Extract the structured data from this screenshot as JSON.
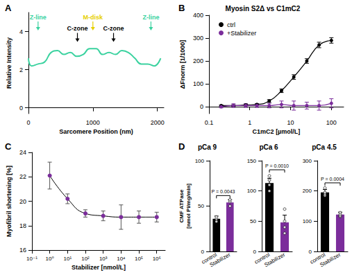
{
  "chart_data": [
    {
      "panel": "A",
      "type": "line",
      "x_label": "Sarcomere Position (nm)",
      "y_label": "Relative Intensity",
      "x": [
        0,
        50,
        150,
        250,
        350,
        450,
        550,
        650,
        750,
        850,
        950,
        1050,
        1150,
        1250,
        1350,
        1450,
        1550,
        1650,
        1750,
        1850,
        1950,
        2050
      ],
      "values": [
        2.6,
        2.2,
        2.3,
        2.4,
        2.9,
        3.0,
        2.8,
        2.9,
        2.7,
        2.8,
        3.1,
        3.1,
        2.8,
        2.9,
        2.8,
        3.0,
        2.9,
        2.6,
        2.3,
        2.3,
        2.2,
        2.6
      ],
      "color": "#3ad29f",
      "xlim": [
        0,
        2100
      ],
      "xticks": [
        0,
        1000,
        2000
      ],
      "ylim": [
        -0.3,
        5
      ],
      "yticks": [
        0,
        2,
        4
      ],
      "grid": false,
      "annotations": [
        {
          "text": "Z-line",
          "x": 150,
          "y": 4.6,
          "color": "#3ad29f"
        },
        {
          "text": "C-zone",
          "x": 760,
          "y": 4.0,
          "color": "#000000"
        },
        {
          "text": "M-disk",
          "x": 1000,
          "y": 4.6,
          "color": "#e6cf00"
        },
        {
          "text": "C-zone",
          "x": 1320,
          "y": 4.0,
          "color": "#000000"
        },
        {
          "text": "Z-line",
          "x": 1900,
          "y": 4.6,
          "color": "#3ad29f"
        }
      ]
    },
    {
      "panel": "B",
      "type": "line",
      "title": "Myosin S2Δ vs C1mC2",
      "x_label": "C1mC2 [µmol/L]",
      "y_label": "ΔFnorm [1/1000]",
      "log": "x",
      "legend": "top-left",
      "grid": false,
      "x": [
        0.2,
        0.4,
        0.8,
        1.5,
        3,
        6,
        12,
        25,
        50,
        100
      ],
      "series": [
        {
          "name": "ctrl",
          "color": "#000000",
          "marker": "circle",
          "line_style": "solid",
          "values": [
            5,
            5,
            8,
            10,
            25,
            70,
            130,
            200,
            270,
            290
          ],
          "errors": [
            3,
            3,
            4,
            4,
            6,
            8,
            10,
            10,
            12,
            12
          ]
        },
        {
          "name": "+Stabilizer",
          "color": "#7b2d9b",
          "marker": "circle",
          "line_style": "solid",
          "values": [
            0,
            5,
            5,
            5,
            5,
            10,
            5,
            5,
            5,
            15
          ],
          "errors": [
            5,
            8,
            8,
            8,
            10,
            15,
            20,
            15,
            20,
            20
          ]
        }
      ],
      "xlim": [
        0.1,
        200
      ],
      "xticks": [
        0.1,
        1,
        10,
        100
      ],
      "ylim": [
        -30,
        400
      ],
      "yticks": [
        0,
        100,
        200,
        300,
        400
      ]
    },
    {
      "panel": "C",
      "type": "line",
      "x_label": "Stabilizer [nmol/L]",
      "y_label": "Myofibril shortening [%]",
      "log": "x",
      "grid": false,
      "color": "#7b2d9b",
      "marker": "circle",
      "x": [
        1,
        10,
        100,
        1000,
        10000,
        100000,
        1000000
      ],
      "values": [
        22.1,
        20.2,
        19.0,
        18.8,
        18.7,
        18.7,
        18.7
      ],
      "errors": [
        1.1,
        0.4,
        0.3,
        0.4,
        1.0,
        0.5,
        0.4
      ],
      "xlim": [
        0.1,
        3000000
      ],
      "xticks": [
        {
          "value": 0.1,
          "label": "10⁻¹"
        },
        {
          "value": 1,
          "label": "10⁰"
        },
        {
          "value": 10,
          "label": "10¹"
        },
        {
          "value": 100,
          "label": "10²"
        },
        {
          "value": 1000,
          "label": "10³"
        },
        {
          "value": 10000,
          "label": "10⁴"
        },
        {
          "value": 100000,
          "label": "10⁵"
        },
        {
          "value": 1000000,
          "label": "10⁶"
        }
      ],
      "ylim": [
        16,
        24
      ],
      "yticks": [
        16,
        18,
        20,
        22,
        24
      ]
    },
    {
      "panel": "D",
      "type": "bar",
      "title": "pCa 9",
      "y_label": "CMF ATPase\n[nmol Pi/mg/min]",
      "grid": false,
      "categories": [
        "control",
        "Stabilizer"
      ],
      "values": [
        36,
        54
      ],
      "errors": [
        3,
        3
      ],
      "colors": [
        "#000000",
        "#7b2d9b"
      ],
      "points": [
        [
          33,
          36,
          38
        ],
        [
          50,
          55,
          57
        ]
      ],
      "annotation": "P = 0.0043",
      "ylim": [
        0,
        100
      ],
      "yticks": [
        0,
        50,
        100
      ]
    },
    {
      "type": "bar",
      "title": "pCa 6",
      "grid": false,
      "categories": [
        "control",
        "Stabilizer"
      ],
      "values": [
        113,
        48
      ],
      "errors": [
        8,
        12
      ],
      "colors": [
        "#000000",
        "#7b2d9b"
      ],
      "points": [
        [
          100,
          110,
          118,
          125
        ],
        [
          30,
          40,
          50,
          70
        ]
      ],
      "annotation": "P = 0.0010",
      "ylim": [
        0,
        150
      ],
      "yticks": [
        0,
        50,
        100,
        150
      ]
    },
    {
      "type": "bar",
      "title": "pCa 4.5",
      "grid": false,
      "categories": [
        "control",
        "Stabilizer"
      ],
      "values": [
        195,
        122
      ],
      "errors": [
        10,
        8
      ],
      "colors": [
        "#000000",
        "#7b2d9b"
      ],
      "points": [
        [
          185,
          190,
          195,
          210
        ],
        [
          115,
          118,
          122,
          128
        ]
      ],
      "annotation": "P = 0.0004",
      "ylim": [
        0,
        300
      ],
      "yticks": [
        0,
        100,
        200,
        300
      ]
    }
  ]
}
